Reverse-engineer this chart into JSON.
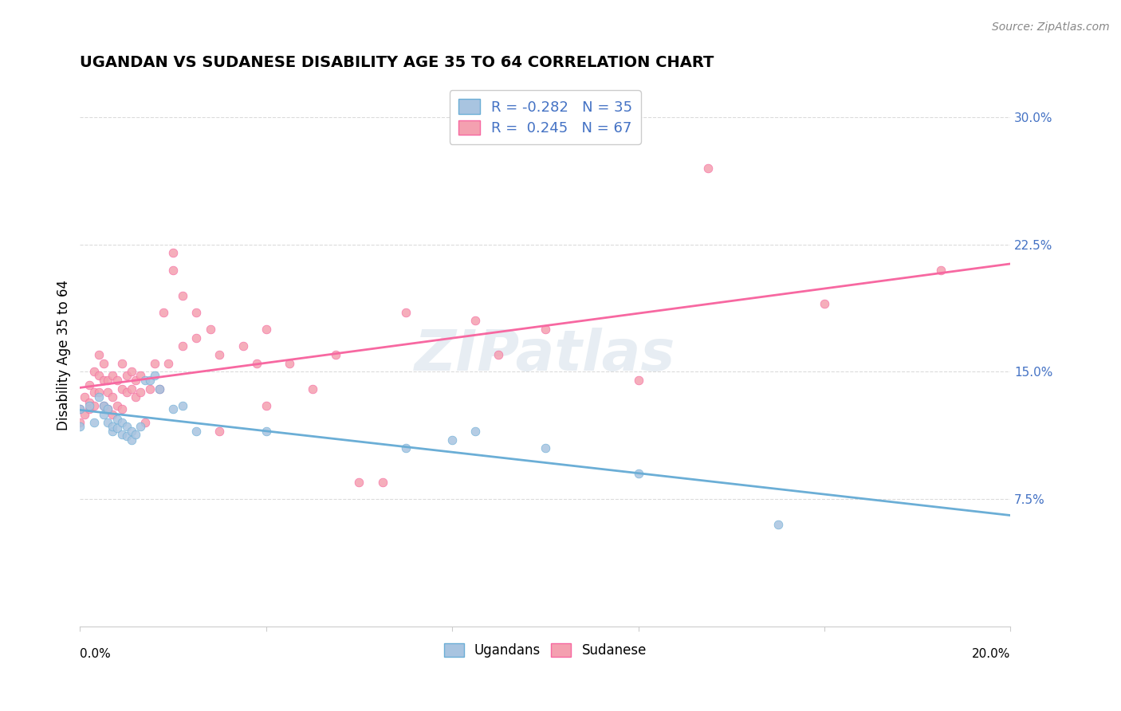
{
  "title": "UGANDAN VS SUDANESE DISABILITY AGE 35 TO 64 CORRELATION CHART",
  "source": "Source: ZipAtlas.com",
  "ylabel": "Disability Age 35 to 64",
  "ylabel_ticks": [
    "7.5%",
    "15.0%",
    "22.5%",
    "30.0%"
  ],
  "ylabel_tick_vals": [
    0.075,
    0.15,
    0.225,
    0.3
  ],
  "xmin": 0.0,
  "xmax": 0.2,
  "ymin": 0.0,
  "ymax": 0.32,
  "ugandan_color": "#a8c4e0",
  "sudanese_color": "#f4a0b0",
  "ugandan_line_color": "#6baed6",
  "sudanese_line_color": "#f768a1",
  "ugandan_R": -0.282,
  "ugandan_N": 35,
  "sudanese_R": 0.245,
  "sudanese_N": 67,
  "watermark": "ZIPatlas",
  "ugandan_scatter": [
    [
      0.0,
      0.128
    ],
    [
      0.0,
      0.118
    ],
    [
      0.002,
      0.13
    ],
    [
      0.003,
      0.12
    ],
    [
      0.004,
      0.135
    ],
    [
      0.005,
      0.13
    ],
    [
      0.005,
      0.125
    ],
    [
      0.006,
      0.128
    ],
    [
      0.006,
      0.12
    ],
    [
      0.007,
      0.115
    ],
    [
      0.007,
      0.118
    ],
    [
      0.008,
      0.122
    ],
    [
      0.008,
      0.117
    ],
    [
      0.009,
      0.12
    ],
    [
      0.009,
      0.113
    ],
    [
      0.01,
      0.118
    ],
    [
      0.01,
      0.112
    ],
    [
      0.011,
      0.115
    ],
    [
      0.011,
      0.11
    ],
    [
      0.012,
      0.113
    ],
    [
      0.013,
      0.118
    ],
    [
      0.014,
      0.145
    ],
    [
      0.015,
      0.145
    ],
    [
      0.016,
      0.148
    ],
    [
      0.017,
      0.14
    ],
    [
      0.02,
      0.128
    ],
    [
      0.022,
      0.13
    ],
    [
      0.025,
      0.115
    ],
    [
      0.04,
      0.115
    ],
    [
      0.07,
      0.105
    ],
    [
      0.08,
      0.11
    ],
    [
      0.085,
      0.115
    ],
    [
      0.1,
      0.105
    ],
    [
      0.12,
      0.09
    ],
    [
      0.15,
      0.06
    ]
  ],
  "sudanese_scatter": [
    [
      0.0,
      0.128
    ],
    [
      0.0,
      0.12
    ],
    [
      0.001,
      0.135
    ],
    [
      0.001,
      0.125
    ],
    [
      0.002,
      0.142
    ],
    [
      0.002,
      0.132
    ],
    [
      0.002,
      0.128
    ],
    [
      0.003,
      0.15
    ],
    [
      0.003,
      0.138
    ],
    [
      0.003,
      0.13
    ],
    [
      0.004,
      0.16
    ],
    [
      0.004,
      0.148
    ],
    [
      0.004,
      0.138
    ],
    [
      0.005,
      0.155
    ],
    [
      0.005,
      0.145
    ],
    [
      0.005,
      0.13
    ],
    [
      0.006,
      0.145
    ],
    [
      0.006,
      0.138
    ],
    [
      0.006,
      0.128
    ],
    [
      0.007,
      0.148
    ],
    [
      0.007,
      0.135
    ],
    [
      0.007,
      0.125
    ],
    [
      0.008,
      0.145
    ],
    [
      0.008,
      0.13
    ],
    [
      0.009,
      0.155
    ],
    [
      0.009,
      0.14
    ],
    [
      0.009,
      0.128
    ],
    [
      0.01,
      0.148
    ],
    [
      0.01,
      0.138
    ],
    [
      0.011,
      0.15
    ],
    [
      0.011,
      0.14
    ],
    [
      0.012,
      0.145
    ],
    [
      0.012,
      0.135
    ],
    [
      0.013,
      0.148
    ],
    [
      0.013,
      0.138
    ],
    [
      0.014,
      0.12
    ],
    [
      0.015,
      0.14
    ],
    [
      0.016,
      0.155
    ],
    [
      0.017,
      0.14
    ],
    [
      0.018,
      0.185
    ],
    [
      0.019,
      0.155
    ],
    [
      0.02,
      0.22
    ],
    [
      0.02,
      0.21
    ],
    [
      0.022,
      0.195
    ],
    [
      0.022,
      0.165
    ],
    [
      0.025,
      0.185
    ],
    [
      0.025,
      0.17
    ],
    [
      0.028,
      0.175
    ],
    [
      0.03,
      0.16
    ],
    [
      0.03,
      0.115
    ],
    [
      0.035,
      0.165
    ],
    [
      0.038,
      0.155
    ],
    [
      0.04,
      0.175
    ],
    [
      0.04,
      0.13
    ],
    [
      0.045,
      0.155
    ],
    [
      0.05,
      0.14
    ],
    [
      0.055,
      0.16
    ],
    [
      0.06,
      0.085
    ],
    [
      0.065,
      0.085
    ],
    [
      0.07,
      0.185
    ],
    [
      0.085,
      0.18
    ],
    [
      0.09,
      0.16
    ],
    [
      0.1,
      0.175
    ],
    [
      0.12,
      0.145
    ],
    [
      0.135,
      0.27
    ],
    [
      0.16,
      0.19
    ],
    [
      0.185,
      0.21
    ]
  ]
}
